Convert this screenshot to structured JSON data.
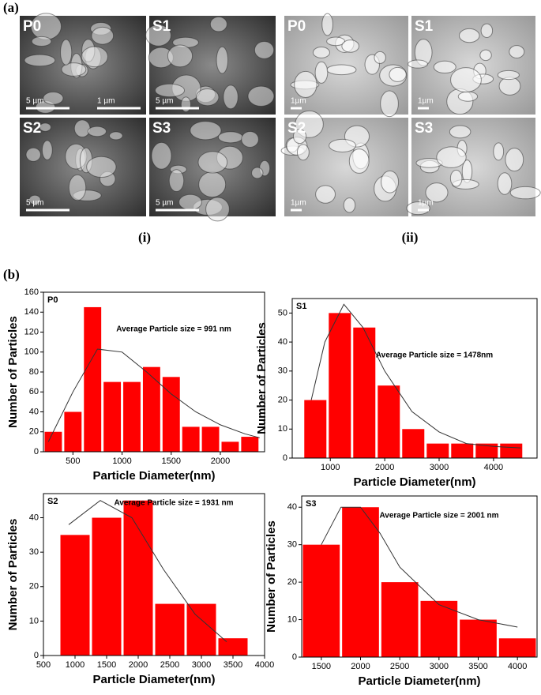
{
  "labels": {
    "a": "(a)",
    "i": "(i)",
    "ii": "(ii)",
    "b": "(b)"
  },
  "micrographs": {
    "i": [
      {
        "label": "P0",
        "scale": [
          "5 µm",
          "1 µm"
        ]
      },
      {
        "label": "S1",
        "scale": [
          "5 µm"
        ]
      },
      {
        "label": "S2",
        "scale": [
          "5 µm"
        ]
      },
      {
        "label": "S3",
        "scale": [
          "5 µm"
        ]
      }
    ],
    "ii": [
      {
        "label": "P0",
        "scale": [
          "1µm"
        ]
      },
      {
        "label": "S1",
        "scale": [
          "1µm"
        ]
      },
      {
        "label": "S2",
        "scale": [
          "1µm"
        ]
      },
      {
        "label": "S3",
        "scale": [
          "1µm"
        ]
      }
    ]
  },
  "chart_data": [
    {
      "type": "histogram",
      "label": "P0",
      "annotation": "Average Particle size = 991 nm",
      "xlabel": "Particle Diameter(nm)",
      "ylabel": "Number of Particles",
      "color": "#ff0000",
      "bins": [
        200,
        400,
        600,
        800,
        1000,
        1200,
        1400,
        1600,
        1800,
        2000,
        2200,
        2400
      ],
      "values": [
        20,
        40,
        145,
        70,
        70,
        85,
        75,
        25,
        25,
        10,
        15
      ],
      "xlim": [
        200,
        2450
      ],
      "ylim": [
        0,
        160
      ],
      "xticks": [
        500,
        1000,
        1500,
        2000
      ],
      "yticks": [
        0,
        20,
        40,
        60,
        80,
        100,
        120,
        140,
        160
      ],
      "fit": {
        "x": [
          250,
          500,
          750,
          1000,
          1250,
          1500,
          1750,
          2000,
          2250,
          2400
        ],
        "y": [
          10,
          60,
          103,
          100,
          80,
          58,
          40,
          27,
          18,
          14
        ]
      }
    },
    {
      "type": "histogram",
      "label": "S1",
      "annotation": "Average Particle size = 1478nm",
      "xlabel": "Particle Diameter(nm)",
      "ylabel": "Number of Particles",
      "color": "#ff0000",
      "bins": [
        500,
        950,
        1400,
        1850,
        2300,
        2750,
        3200,
        3650,
        4100,
        4550
      ],
      "values": [
        20,
        50,
        45,
        25,
        10,
        5,
        5,
        5,
        5
      ],
      "xlim": [
        300,
        4800
      ],
      "ylim": [
        0,
        55
      ],
      "xticks": [
        1000,
        2000,
        3000,
        4000
      ],
      "yticks": [
        0,
        10,
        20,
        30,
        40,
        50
      ],
      "fit": {
        "x": [
          650,
          900,
          1250,
          1600,
          2000,
          2500,
          3000,
          3500,
          4000,
          4500
        ],
        "y": [
          20,
          40,
          53,
          45,
          30,
          16,
          9,
          5,
          4,
          3.5
        ]
      }
    },
    {
      "type": "histogram",
      "label": "S2",
      "annotation": "Average Particle size = 1931 nm",
      "xlabel": "Particle Diameter(nm)",
      "ylabel": "Number of Particles",
      "color": "#ff0000",
      "bins": [
        750,
        1250,
        1750,
        2250,
        2750,
        3250,
        3750
      ],
      "values": [
        35,
        40,
        45,
        15,
        15,
        5
      ],
      "xlim": [
        500,
        4000
      ],
      "ylim": [
        0,
        47
      ],
      "xticks": [
        500,
        1000,
        1500,
        2000,
        2500,
        3000,
        3500,
        4000
      ],
      "yticks": [
        0,
        10,
        20,
        30,
        40
      ],
      "fit": {
        "x": [
          900,
          1400,
          1900,
          2400,
          2900,
          3400
        ],
        "y": [
          38,
          45,
          40,
          25,
          12,
          4
        ]
      }
    },
    {
      "type": "histogram",
      "label": "S3",
      "annotation": "Average Particle size = 2001 nm",
      "xlabel": "Particle Diameter(nm)",
      "ylabel": "Number of Particles",
      "color": "#ff0000",
      "bins": [
        1250,
        1750,
        2250,
        2750,
        3250,
        3750,
        4250
      ],
      "values": [
        30,
        40,
        20,
        15,
        10,
        5
      ],
      "xlim": [
        1250,
        4250
      ],
      "ylim": [
        0,
        43
      ],
      "xticks": [
        1500,
        2000,
        2500,
        3000,
        3500,
        4000
      ],
      "yticks": [
        0,
        10,
        20,
        30,
        40
      ],
      "fit": {
        "x": [
          1500,
          1750,
          2000,
          2250,
          2500,
          3000,
          3500,
          4000
        ],
        "y": [
          30,
          40,
          40,
          33,
          24,
          14,
          10,
          8
        ]
      }
    }
  ]
}
